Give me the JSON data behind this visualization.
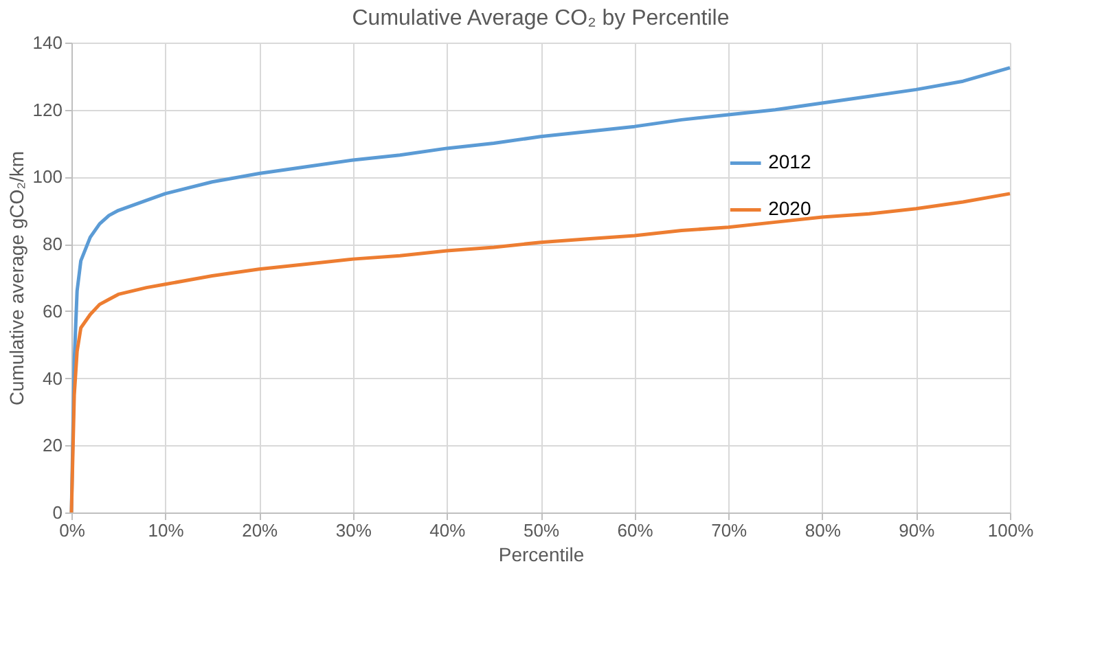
{
  "chart_data": {
    "type": "line",
    "title": "Cumulative Average CO₂ by Percentile",
    "xlabel": "Percentile",
    "ylabel": "Cumulative average gCO₂/km",
    "x": [
      0,
      0.3,
      0.6,
      1,
      2,
      3,
      4,
      5,
      8,
      10,
      15,
      20,
      25,
      30,
      35,
      40,
      45,
      50,
      55,
      60,
      65,
      70,
      75,
      80,
      85,
      90,
      95,
      100
    ],
    "series": [
      {
        "name": "2012",
        "color": "#5b9bd5",
        "values": [
          0,
          45,
          66,
          75,
          82,
          86,
          88.5,
          90,
          93,
          95,
          98.5,
          101,
          103,
          105,
          106.5,
          108.5,
          110,
          112,
          113.5,
          115,
          117,
          118.5,
          120,
          122,
          124,
          126,
          128.5,
          132.5
        ]
      },
      {
        "name": "2020",
        "color": "#ed7d31",
        "values": [
          0,
          35,
          48,
          55,
          59,
          62,
          63.5,
          65,
          67,
          68,
          70.5,
          72.5,
          74,
          75.5,
          76.5,
          78,
          79,
          80.5,
          81.5,
          82.5,
          84,
          85,
          86.5,
          88,
          89,
          90.5,
          92.5,
          95
        ]
      }
    ],
    "xlim": [
      0,
      100
    ],
    "xticks": [
      {
        "value": 0,
        "label": "0%"
      },
      {
        "value": 10,
        "label": "10%"
      },
      {
        "value": 20,
        "label": "20%"
      },
      {
        "value": 30,
        "label": "30%"
      },
      {
        "value": 40,
        "label": "40%"
      },
      {
        "value": 50,
        "label": "50%"
      },
      {
        "value": 60,
        "label": "60%"
      },
      {
        "value": 70,
        "label": "70%"
      },
      {
        "value": 80,
        "label": "80%"
      },
      {
        "value": 90,
        "label": "90%"
      },
      {
        "value": 100,
        "label": "100%"
      }
    ],
    "ylim": [
      0,
      140
    ],
    "yticks": [
      0,
      20,
      40,
      60,
      80,
      100,
      120,
      140
    ],
    "grid": true,
    "legend": "right",
    "marker": "none",
    "line_style": "solid"
  }
}
